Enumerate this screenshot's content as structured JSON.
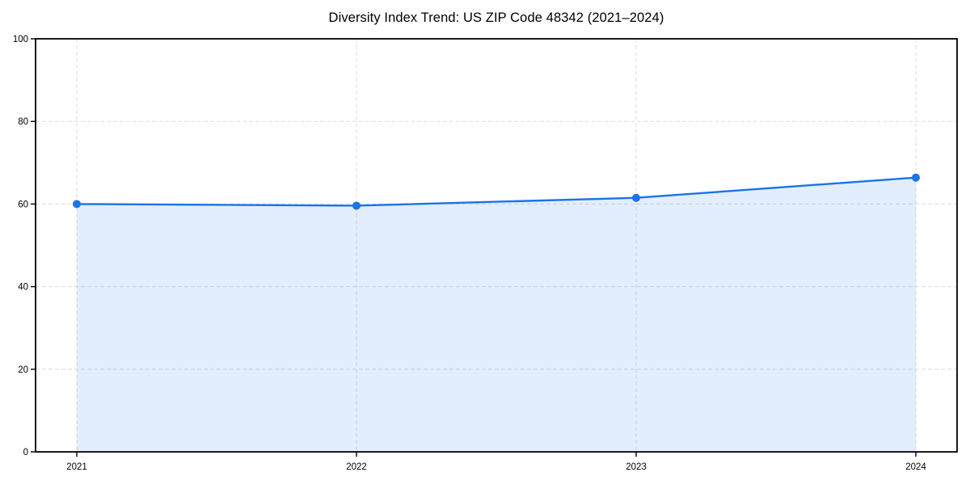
{
  "figure": {
    "background": "#ffffff"
  },
  "chart_data": {
    "type": "area",
    "title": "Diversity Index Trend: US ZIP Code 48342 (2021–2024)",
    "x": [
      "2021",
      "2022",
      "2023",
      "2024"
    ],
    "values": [
      60.0,
      59.6,
      61.5,
      66.4
    ],
    "xlabel": "",
    "ylabel": "",
    "ylim": [
      0,
      100
    ],
    "yticks": [
      0,
      20,
      40,
      60,
      80,
      100
    ],
    "grid": "both-axes, dashed",
    "legend": "none",
    "marker": "circle",
    "colors": {
      "line": "#1a73e8",
      "area_fill": "rgba(26,115,232,0.12)",
      "grid": "#dcdcdc",
      "axis": "#000000",
      "tick_text": "#000000",
      "title_text": "#000000"
    }
  }
}
